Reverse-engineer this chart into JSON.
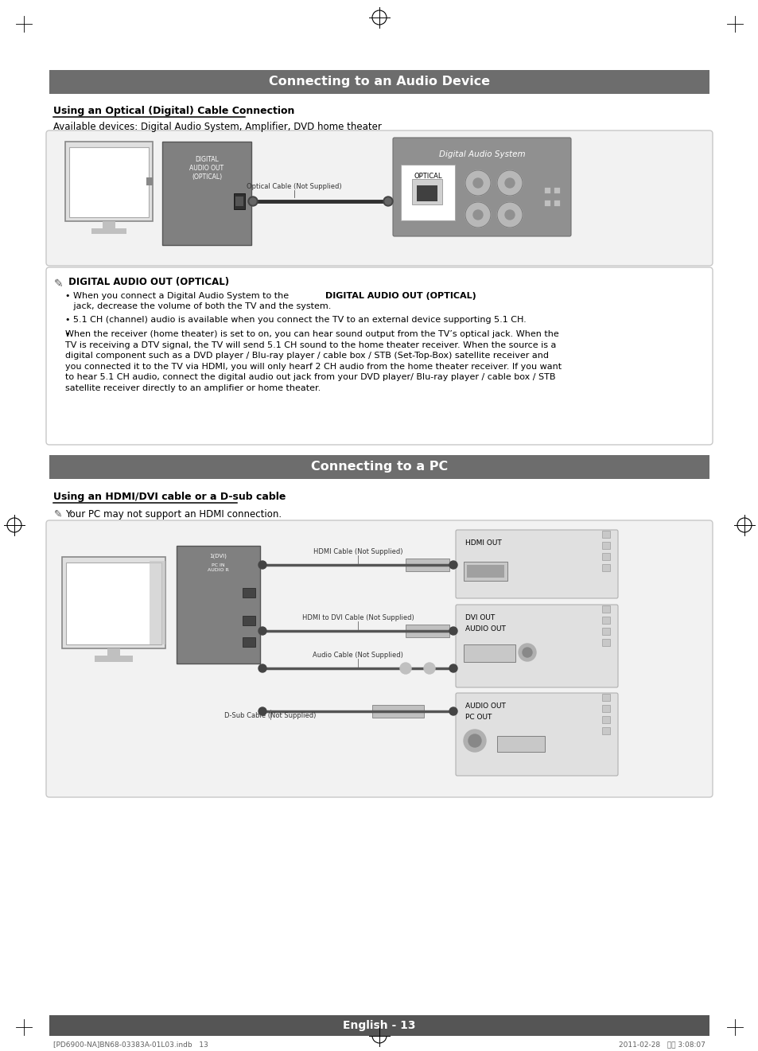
{
  "page_bg": "#ffffff",
  "header_bar_color": "#6d6d6d",
  "header_text1": "Connecting to an Audio Device",
  "header_text2": "Connecting to a PC",
  "section1_subtitle": "Using an Optical (Digital) Cable Connection",
  "section1_available": "Available devices: Digital Audio System, Amplifier, DVD home theater",
  "section1_note_title": "DIGITAL AUDIO OUT (OPTICAL)",
  "section1_bullet1a": "When you connect a Digital Audio System to the ",
  "section1_bullet1b": "DIGITAL AUDIO OUT (OPTICAL)",
  "section1_bullet1c": " jack, decrease the volume",
  "section1_bullet1d": "of both the TV and the system.",
  "section1_bullet2": "5.1 CH (channel) audio is available when you connect the TV to an external device supporting 5.1 CH.",
  "section1_bullet3": "When the receiver (home theater) is set to on, you can hear sound output from the TV’s optical jack. When the\nTV is receiving a DTV signal, the TV will send 5.1 CH sound to the home theater receiver. When the source is a\ndigital component such as a DVD player / Blu-ray player / cable box / STB (Set-Top-Box) satellite receiver and\nyou connected it to the TV via HDMI, you will only hearf 2 CH audio from the home theater receiver. If you want\nto hear 5.1 CH audio, connect the digital audio out jack from your DVD player/ Blu-ray player / cable box / STB\nsatellite receiver directly to an amplifier or home theater.",
  "section2_subtitle": "Using an HDMI/DVI cable or a D-sub cable",
  "section2_note": "Your PC may not support an HDMI connection.",
  "optical_cable_label": "Optical Cable (Not Supplied)",
  "hdmi_cable_label": "HDMI Cable (Not Supplied)",
  "hdmi_dvi_label": "HDMI to DVI Cable (Not Supplied)",
  "audio_cable_label": "Audio Cable (Not Supplied)",
  "dsub_cable_label": "D-Sub Cable (Not Supplied)",
  "digital_audio_system_label": "Digital Audio System",
  "optical_label": "OPTICAL",
  "hdmi_out_label": "HDMI OUT",
  "dvi_out_label": "DVI OUT",
  "audio_out_label": "AUDIO OUT",
  "audio_out2_label": "AUDIO OUT",
  "pc_out_label": "PC OUT",
  "footer_text": "English - 13",
  "footer_small": "[PD6900-NA]BN68-03383A-01L03.indb   13",
  "footer_date": "2011-02-28   오후 3:08:07",
  "page_width": 9.54,
  "page_height": 13.21
}
